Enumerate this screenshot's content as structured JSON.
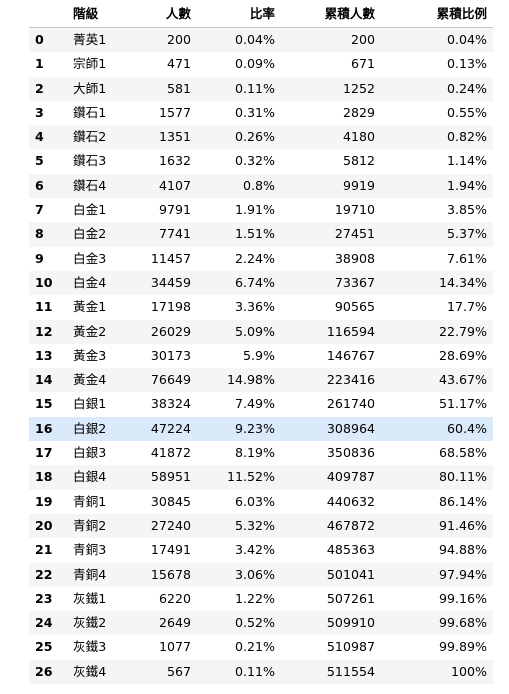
{
  "table": {
    "columns": [
      "",
      "階級",
      "人數",
      "比率",
      "累積人數",
      "累積比例"
    ],
    "highlight_row": 16,
    "rows": [
      {
        "idx": "0",
        "tier": "菁英1",
        "count": "200",
        "rate": "0.04%",
        "cum": "200",
        "cum_rate": "0.04%"
      },
      {
        "idx": "1",
        "tier": "宗師1",
        "count": "471",
        "rate": "0.09%",
        "cum": "671",
        "cum_rate": "0.13%"
      },
      {
        "idx": "2",
        "tier": "大師1",
        "count": "581",
        "rate": "0.11%",
        "cum": "1252",
        "cum_rate": "0.24%"
      },
      {
        "idx": "3",
        "tier": "鑽石1",
        "count": "1577",
        "rate": "0.31%",
        "cum": "2829",
        "cum_rate": "0.55%"
      },
      {
        "idx": "4",
        "tier": "鑽石2",
        "count": "1351",
        "rate": "0.26%",
        "cum": "4180",
        "cum_rate": "0.82%"
      },
      {
        "idx": "5",
        "tier": "鑽石3",
        "count": "1632",
        "rate": "0.32%",
        "cum": "5812",
        "cum_rate": "1.14%"
      },
      {
        "idx": "6",
        "tier": "鑽石4",
        "count": "4107",
        "rate": "0.8%",
        "cum": "9919",
        "cum_rate": "1.94%"
      },
      {
        "idx": "7",
        "tier": "白金1",
        "count": "9791",
        "rate": "1.91%",
        "cum": "19710",
        "cum_rate": "3.85%"
      },
      {
        "idx": "8",
        "tier": "白金2",
        "count": "7741",
        "rate": "1.51%",
        "cum": "27451",
        "cum_rate": "5.37%"
      },
      {
        "idx": "9",
        "tier": "白金3",
        "count": "11457",
        "rate": "2.24%",
        "cum": "38908",
        "cum_rate": "7.61%"
      },
      {
        "idx": "10",
        "tier": "白金4",
        "count": "34459",
        "rate": "6.74%",
        "cum": "73367",
        "cum_rate": "14.34%"
      },
      {
        "idx": "11",
        "tier": "黃金1",
        "count": "17198",
        "rate": "3.36%",
        "cum": "90565",
        "cum_rate": "17.7%"
      },
      {
        "idx": "12",
        "tier": "黃金2",
        "count": "26029",
        "rate": "5.09%",
        "cum": "116594",
        "cum_rate": "22.79%"
      },
      {
        "idx": "13",
        "tier": "黃金3",
        "count": "30173",
        "rate": "5.9%",
        "cum": "146767",
        "cum_rate": "28.69%"
      },
      {
        "idx": "14",
        "tier": "黃金4",
        "count": "76649",
        "rate": "14.98%",
        "cum": "223416",
        "cum_rate": "43.67%"
      },
      {
        "idx": "15",
        "tier": "白銀1",
        "count": "38324",
        "rate": "7.49%",
        "cum": "261740",
        "cum_rate": "51.17%"
      },
      {
        "idx": "16",
        "tier": "白銀2",
        "count": "47224",
        "rate": "9.23%",
        "cum": "308964",
        "cum_rate": "60.4%"
      },
      {
        "idx": "17",
        "tier": "白銀3",
        "count": "41872",
        "rate": "8.19%",
        "cum": "350836",
        "cum_rate": "68.58%"
      },
      {
        "idx": "18",
        "tier": "白銀4",
        "count": "58951",
        "rate": "11.52%",
        "cum": "409787",
        "cum_rate": "80.11%"
      },
      {
        "idx": "19",
        "tier": "青銅1",
        "count": "30845",
        "rate": "6.03%",
        "cum": "440632",
        "cum_rate": "86.14%"
      },
      {
        "idx": "20",
        "tier": "青銅2",
        "count": "27240",
        "rate": "5.32%",
        "cum": "467872",
        "cum_rate": "91.46%"
      },
      {
        "idx": "21",
        "tier": "青銅3",
        "count": "17491",
        "rate": "3.42%",
        "cum": "485363",
        "cum_rate": "94.88%"
      },
      {
        "idx": "22",
        "tier": "青銅4",
        "count": "15678",
        "rate": "3.06%",
        "cum": "501041",
        "cum_rate": "97.94%"
      },
      {
        "idx": "23",
        "tier": "灰鐵1",
        "count": "6220",
        "rate": "1.22%",
        "cum": "507261",
        "cum_rate": "99.16%"
      },
      {
        "idx": "24",
        "tier": "灰鐵2",
        "count": "2649",
        "rate": "0.52%",
        "cum": "509910",
        "cum_rate": "99.68%"
      },
      {
        "idx": "25",
        "tier": "灰鐵3",
        "count": "1077",
        "rate": "0.21%",
        "cum": "510987",
        "cum_rate": "99.89%"
      },
      {
        "idx": "26",
        "tier": "灰鐵4",
        "count": "567",
        "rate": "0.11%",
        "cum": "511554",
        "cum_rate": "100%"
      }
    ]
  },
  "colors": {
    "row_stripe": "#f5f5f5",
    "row_plain": "#ffffff",
    "row_highlight": "#dbeafb",
    "header_rule": "#c8c8c8"
  }
}
